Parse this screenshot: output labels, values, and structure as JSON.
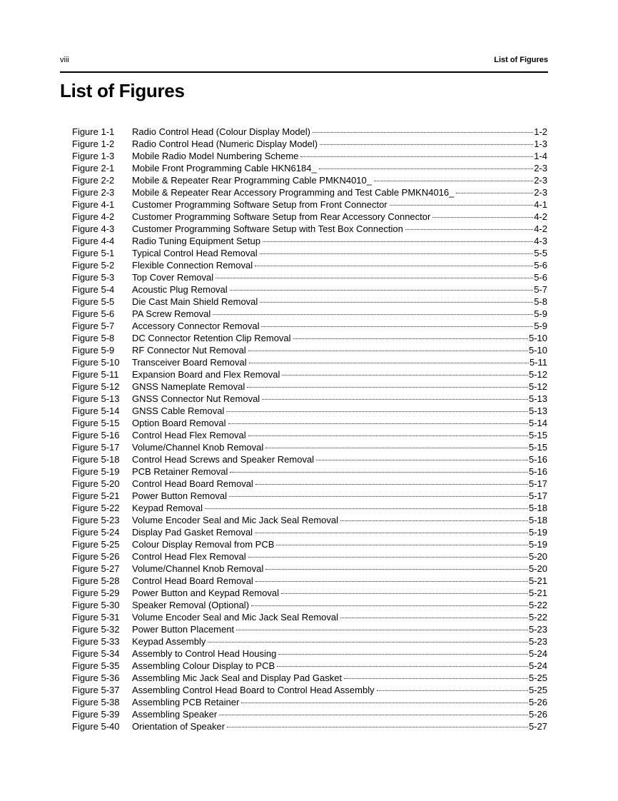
{
  "header": {
    "page_number": "viii",
    "section": "List of Figures"
  },
  "page_title": "List of Figures",
  "figures": [
    {
      "label": "Figure 1-1",
      "title": "Radio Control Head (Colour Display Model)",
      "page": "1-2"
    },
    {
      "label": "Figure 1-2",
      "title": "Radio Control Head (Numeric Display Model)",
      "page": "1-3"
    },
    {
      "label": "Figure 1-3",
      "title": "Mobile Radio Model Numbering Scheme",
      "page": "1-4"
    },
    {
      "label": "Figure 2-1",
      "title": "Mobile Front Programming Cable HKN6184_",
      "page": "2-3"
    },
    {
      "label": "Figure 2-2",
      "title": "Mobile & Repeater Rear Programming Cable PMKN4010_",
      "page": "2-3"
    },
    {
      "label": "Figure 2-3",
      "title": "Mobile & Repeater Rear Accessory Programming and Test Cable PMKN4016_",
      "page": "2-3"
    },
    {
      "label": "Figure 4-1",
      "title": "Customer Programming Software Setup from Front Connector",
      "page": "4-1"
    },
    {
      "label": "Figure 4-2",
      "title": "Customer Programming Software Setup from Rear Accessory Connector",
      "page": "4-2"
    },
    {
      "label": "Figure 4-3",
      "title": "Customer Programming Software Setup with Test Box Connection",
      "page": "4-2"
    },
    {
      "label": "Figure 4-4",
      "title": "Radio Tuning Equipment Setup",
      "page": "4-3"
    },
    {
      "label": "Figure 5-1",
      "title": "Typical Control Head Removal",
      "page": "5-5"
    },
    {
      "label": "Figure 5-2",
      "title": "Flexible Connection Removal",
      "page": "5-6"
    },
    {
      "label": "Figure 5-3",
      "title": "Top Cover Removal",
      "page": "5-6"
    },
    {
      "label": "Figure 5-4",
      "title": "Acoustic Plug Removal",
      "page": "5-7"
    },
    {
      "label": "Figure 5-5",
      "title": "Die Cast Main Shield Removal",
      "page": "5-8"
    },
    {
      "label": "Figure 5-6",
      "title": "PA Screw Removal",
      "page": "5-9"
    },
    {
      "label": "Figure 5-7",
      "title": "Accessory Connector Removal",
      "page": "5-9"
    },
    {
      "label": "Figure 5-8",
      "title": "DC Connector Retention Clip Removal",
      "page": "5-10"
    },
    {
      "label": "Figure 5-9",
      "title": "RF Connector Nut Removal",
      "page": "5-10"
    },
    {
      "label": "Figure 5-10",
      "title": "Transceiver Board Removal",
      "page": "5-11"
    },
    {
      "label": "Figure 5-11",
      "title": "Expansion Board and Flex Removal",
      "page": "5-12"
    },
    {
      "label": "Figure 5-12",
      "title": "GNSS Nameplate Removal",
      "page": "5-12"
    },
    {
      "label": "Figure 5-13",
      "title": "GNSS Connector Nut Removal",
      "page": "5-13"
    },
    {
      "label": "Figure 5-14",
      "title": "GNSS Cable Removal",
      "page": "5-13"
    },
    {
      "label": "Figure 5-15",
      "title": "Option Board Removal",
      "page": "5-14"
    },
    {
      "label": "Figure 5-16",
      "title": "Control Head Flex Removal",
      "page": "5-15"
    },
    {
      "label": "Figure 5-17",
      "title": "Volume/Channel Knob Removal",
      "page": "5-15"
    },
    {
      "label": "Figure 5-18",
      "title": "Control Head Screws and Speaker Removal",
      "page": "5-16"
    },
    {
      "label": "Figure 5-19",
      "title": "PCB Retainer Removal",
      "page": "5-16"
    },
    {
      "label": "Figure 5-20",
      "title": "Control Head Board Removal",
      "page": "5-17"
    },
    {
      "label": "Figure 5-21",
      "title": "Power Button Removal",
      "page": "5-17"
    },
    {
      "label": "Figure 5-22",
      "title": "Keypad Removal",
      "page": "5-18"
    },
    {
      "label": "Figure 5-23",
      "title": "Volume Encoder Seal and Mic Jack Seal Removal",
      "page": "5-18"
    },
    {
      "label": "Figure 5-24",
      "title": "Display Pad Gasket Removal",
      "page": "5-19"
    },
    {
      "label": "Figure 5-25",
      "title": "Colour Display Removal from PCB",
      "page": "5-19"
    },
    {
      "label": "Figure 5-26",
      "title": "Control Head Flex Removal",
      "page": "5-20"
    },
    {
      "label": "Figure 5-27",
      "title": "Volume/Channel Knob Removal",
      "page": "5-20"
    },
    {
      "label": "Figure 5-28",
      "title": "Control Head Board Removal",
      "page": "5-21"
    },
    {
      "label": "Figure 5-29",
      "title": "Power Button and Keypad Removal",
      "page": "5-21"
    },
    {
      "label": "Figure 5-30",
      "title": "Speaker Removal (Optional)",
      "page": "5-22"
    },
    {
      "label": "Figure 5-31",
      "title": "Volume Encoder Seal and Mic Jack Seal Removal",
      "page": "5-22"
    },
    {
      "label": "Figure 5-32",
      "title": "Power Button Placement",
      "page": "5-23"
    },
    {
      "label": "Figure 5-33",
      "title": "Keypad Assembly",
      "page": "5-23"
    },
    {
      "label": "Figure 5-34",
      "title": "Assembly to Control Head Housing",
      "page": "5-24"
    },
    {
      "label": "Figure 5-35",
      "title": "Assembling Colour Display to PCB",
      "page": "5-24"
    },
    {
      "label": "Figure 5-36",
      "title": "Assembling Mic Jack Seal and Display Pad Gasket",
      "page": "5-25"
    },
    {
      "label": "Figure 5-37",
      "title": "Assembling Control Head Board to Control Head Assembly",
      "page": "5-25"
    },
    {
      "label": "Figure 5-38",
      "title": "Assembling PCB Retainer",
      "page": "5-26"
    },
    {
      "label": "Figure 5-39",
      "title": "Assembling Speaker",
      "page": "5-26"
    },
    {
      "label": "Figure 5-40",
      "title": "Orientation of Speaker",
      "page": "5-27"
    }
  ]
}
